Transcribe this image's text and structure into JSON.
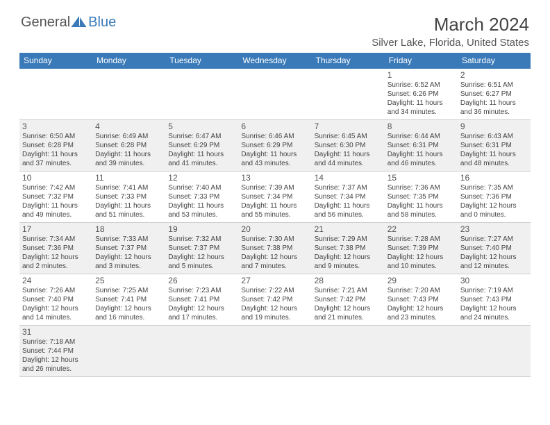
{
  "logo": {
    "text1": "General",
    "text2": "Blue"
  },
  "title": "March 2024",
  "location": "Silver Lake, Florida, United States",
  "colors": {
    "header_bg": "#3a7ab8",
    "rule": "#3a7ab8"
  },
  "day_headers": [
    "Sunday",
    "Monday",
    "Tuesday",
    "Wednesday",
    "Thursday",
    "Friday",
    "Saturday"
  ],
  "weeks": [
    [
      null,
      null,
      null,
      null,
      null,
      {
        "n": "1",
        "rise": "Sunrise: 6:52 AM",
        "set": "Sunset: 6:26 PM",
        "dl1": "Daylight: 11 hours",
        "dl2": "and 34 minutes."
      },
      {
        "n": "2",
        "rise": "Sunrise: 6:51 AM",
        "set": "Sunset: 6:27 PM",
        "dl1": "Daylight: 11 hours",
        "dl2": "and 36 minutes."
      }
    ],
    [
      {
        "n": "3",
        "rise": "Sunrise: 6:50 AM",
        "set": "Sunset: 6:28 PM",
        "dl1": "Daylight: 11 hours",
        "dl2": "and 37 minutes."
      },
      {
        "n": "4",
        "rise": "Sunrise: 6:49 AM",
        "set": "Sunset: 6:28 PM",
        "dl1": "Daylight: 11 hours",
        "dl2": "and 39 minutes."
      },
      {
        "n": "5",
        "rise": "Sunrise: 6:47 AM",
        "set": "Sunset: 6:29 PM",
        "dl1": "Daylight: 11 hours",
        "dl2": "and 41 minutes."
      },
      {
        "n": "6",
        "rise": "Sunrise: 6:46 AM",
        "set": "Sunset: 6:29 PM",
        "dl1": "Daylight: 11 hours",
        "dl2": "and 43 minutes."
      },
      {
        "n": "7",
        "rise": "Sunrise: 6:45 AM",
        "set": "Sunset: 6:30 PM",
        "dl1": "Daylight: 11 hours",
        "dl2": "and 44 minutes."
      },
      {
        "n": "8",
        "rise": "Sunrise: 6:44 AM",
        "set": "Sunset: 6:31 PM",
        "dl1": "Daylight: 11 hours",
        "dl2": "and 46 minutes."
      },
      {
        "n": "9",
        "rise": "Sunrise: 6:43 AM",
        "set": "Sunset: 6:31 PM",
        "dl1": "Daylight: 11 hours",
        "dl2": "and 48 minutes."
      }
    ],
    [
      {
        "n": "10",
        "rise": "Sunrise: 7:42 AM",
        "set": "Sunset: 7:32 PM",
        "dl1": "Daylight: 11 hours",
        "dl2": "and 49 minutes."
      },
      {
        "n": "11",
        "rise": "Sunrise: 7:41 AM",
        "set": "Sunset: 7:33 PM",
        "dl1": "Daylight: 11 hours",
        "dl2": "and 51 minutes."
      },
      {
        "n": "12",
        "rise": "Sunrise: 7:40 AM",
        "set": "Sunset: 7:33 PM",
        "dl1": "Daylight: 11 hours",
        "dl2": "and 53 minutes."
      },
      {
        "n": "13",
        "rise": "Sunrise: 7:39 AM",
        "set": "Sunset: 7:34 PM",
        "dl1": "Daylight: 11 hours",
        "dl2": "and 55 minutes."
      },
      {
        "n": "14",
        "rise": "Sunrise: 7:37 AM",
        "set": "Sunset: 7:34 PM",
        "dl1": "Daylight: 11 hours",
        "dl2": "and 56 minutes."
      },
      {
        "n": "15",
        "rise": "Sunrise: 7:36 AM",
        "set": "Sunset: 7:35 PM",
        "dl1": "Daylight: 11 hours",
        "dl2": "and 58 minutes."
      },
      {
        "n": "16",
        "rise": "Sunrise: 7:35 AM",
        "set": "Sunset: 7:36 PM",
        "dl1": "Daylight: 12 hours",
        "dl2": "and 0 minutes."
      }
    ],
    [
      {
        "n": "17",
        "rise": "Sunrise: 7:34 AM",
        "set": "Sunset: 7:36 PM",
        "dl1": "Daylight: 12 hours",
        "dl2": "and 2 minutes."
      },
      {
        "n": "18",
        "rise": "Sunrise: 7:33 AM",
        "set": "Sunset: 7:37 PM",
        "dl1": "Daylight: 12 hours",
        "dl2": "and 3 minutes."
      },
      {
        "n": "19",
        "rise": "Sunrise: 7:32 AM",
        "set": "Sunset: 7:37 PM",
        "dl1": "Daylight: 12 hours",
        "dl2": "and 5 minutes."
      },
      {
        "n": "20",
        "rise": "Sunrise: 7:30 AM",
        "set": "Sunset: 7:38 PM",
        "dl1": "Daylight: 12 hours",
        "dl2": "and 7 minutes."
      },
      {
        "n": "21",
        "rise": "Sunrise: 7:29 AM",
        "set": "Sunset: 7:38 PM",
        "dl1": "Daylight: 12 hours",
        "dl2": "and 9 minutes."
      },
      {
        "n": "22",
        "rise": "Sunrise: 7:28 AM",
        "set": "Sunset: 7:39 PM",
        "dl1": "Daylight: 12 hours",
        "dl2": "and 10 minutes."
      },
      {
        "n": "23",
        "rise": "Sunrise: 7:27 AM",
        "set": "Sunset: 7:40 PM",
        "dl1": "Daylight: 12 hours",
        "dl2": "and 12 minutes."
      }
    ],
    [
      {
        "n": "24",
        "rise": "Sunrise: 7:26 AM",
        "set": "Sunset: 7:40 PM",
        "dl1": "Daylight: 12 hours",
        "dl2": "and 14 minutes."
      },
      {
        "n": "25",
        "rise": "Sunrise: 7:25 AM",
        "set": "Sunset: 7:41 PM",
        "dl1": "Daylight: 12 hours",
        "dl2": "and 16 minutes."
      },
      {
        "n": "26",
        "rise": "Sunrise: 7:23 AM",
        "set": "Sunset: 7:41 PM",
        "dl1": "Daylight: 12 hours",
        "dl2": "and 17 minutes."
      },
      {
        "n": "27",
        "rise": "Sunrise: 7:22 AM",
        "set": "Sunset: 7:42 PM",
        "dl1": "Daylight: 12 hours",
        "dl2": "and 19 minutes."
      },
      {
        "n": "28",
        "rise": "Sunrise: 7:21 AM",
        "set": "Sunset: 7:42 PM",
        "dl1": "Daylight: 12 hours",
        "dl2": "and 21 minutes."
      },
      {
        "n": "29",
        "rise": "Sunrise: 7:20 AM",
        "set": "Sunset: 7:43 PM",
        "dl1": "Daylight: 12 hours",
        "dl2": "and 23 minutes."
      },
      {
        "n": "30",
        "rise": "Sunrise: 7:19 AM",
        "set": "Sunset: 7:43 PM",
        "dl1": "Daylight: 12 hours",
        "dl2": "and 24 minutes."
      }
    ],
    [
      {
        "n": "31",
        "rise": "Sunrise: 7:18 AM",
        "set": "Sunset: 7:44 PM",
        "dl1": "Daylight: 12 hours",
        "dl2": "and 26 minutes."
      },
      null,
      null,
      null,
      null,
      null,
      null
    ]
  ]
}
